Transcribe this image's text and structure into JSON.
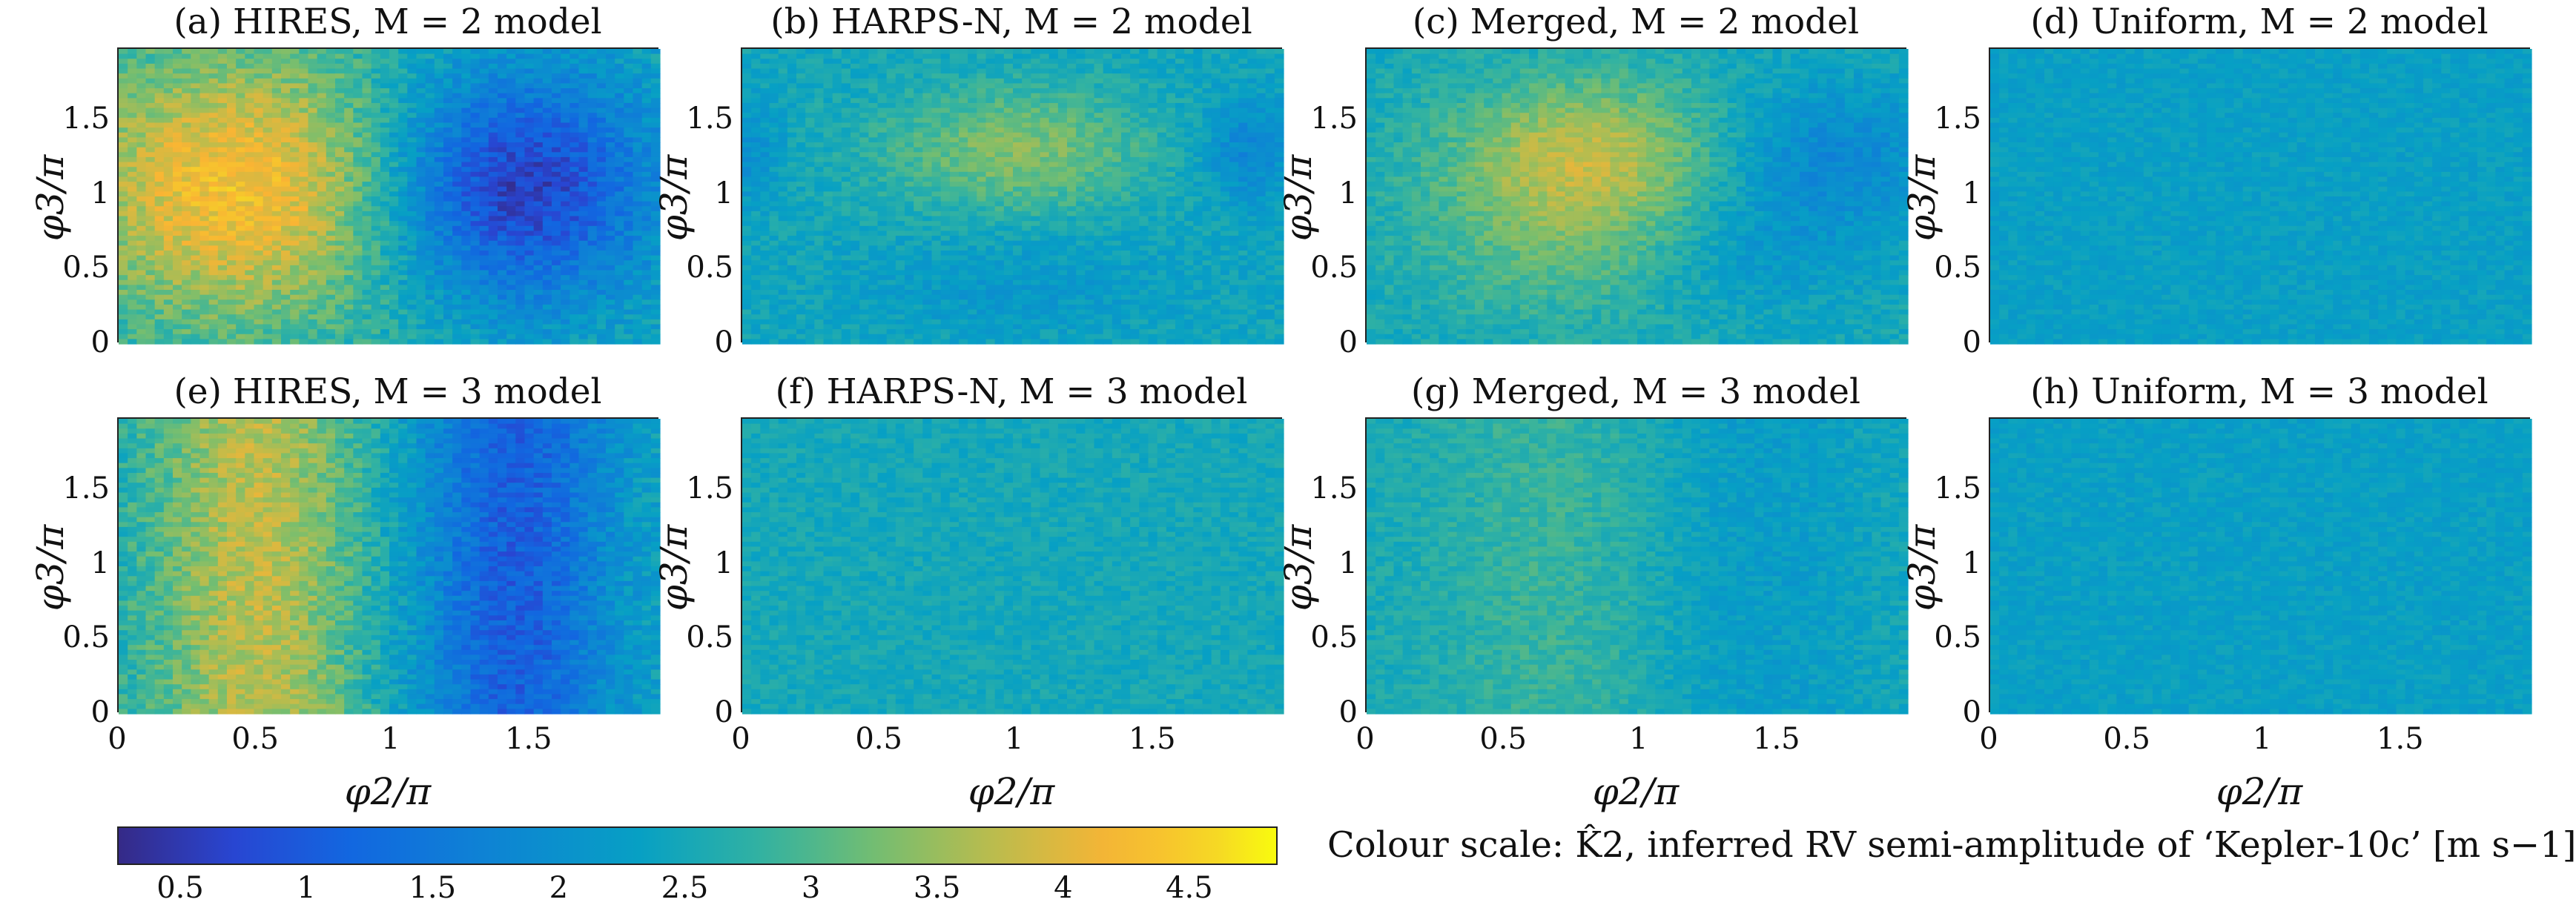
{
  "chart_data": {
    "type": "heatmap",
    "xlabel": "φ2/π",
    "ylabel": "φ3/π",
    "xlim": [
      0,
      2
    ],
    "ylim": [
      0,
      2
    ],
    "x_ticks": [
      "0",
      "0.5",
      "1",
      "1.5"
    ],
    "y_ticks": [
      "0",
      "0.5",
      "1",
      "1.5"
    ],
    "grid_resolution": [
      60,
      60
    ],
    "colormap": "parula",
    "colorbar": {
      "range": [
        0.25,
        4.85
      ],
      "ticks": [
        "0.5",
        "1",
        "1.5",
        "2",
        "2.5",
        "3",
        "3.5",
        "4",
        "4.5"
      ],
      "caption": "Colour scale: K̂2, inferred RV semi-amplitude of ‘Kepler-10c’ [m s−1]"
    },
    "panels": [
      {
        "title": "(a) HIRES, M = 2 model",
        "baseline": 2.5,
        "features": [
          {
            "x": 0.45,
            "y": 1.05,
            "dv": 1.8,
            "sx": 0.45,
            "sy": 0.65
          },
          {
            "x": 1.45,
            "y": 1.05,
            "dv": -2.0,
            "sx": 0.35,
            "sy": 0.55
          }
        ],
        "noise": 0.35
      },
      {
        "title": "(b) HARPS-N, M = 2 model",
        "baseline": 2.45,
        "features": [
          {
            "x": 1.0,
            "y": 1.3,
            "dv": 0.9,
            "sx": 0.35,
            "sy": 0.3
          },
          {
            "x": 1.0,
            "y": 0.4,
            "dv": -0.3,
            "sx": 0.4,
            "sy": 0.25
          },
          {
            "x": 0.0,
            "y": 1.3,
            "dv": -0.5,
            "sx": 0.1,
            "sy": 0.25
          },
          {
            "x": 1.85,
            "y": 1.3,
            "dv": -0.7,
            "sx": 0.12,
            "sy": 0.25
          }
        ],
        "noise": 0.25
      },
      {
        "title": "(c) Merged, M = 2 model",
        "baseline": 2.5,
        "features": [
          {
            "x": 0.8,
            "y": 1.3,
            "dv": 1.1,
            "sx": 0.35,
            "sy": 0.35
          },
          {
            "x": 0.75,
            "y": 0.7,
            "dv": 0.6,
            "sx": 0.4,
            "sy": 0.4
          },
          {
            "x": 1.7,
            "y": 1.25,
            "dv": -0.7,
            "sx": 0.3,
            "sy": 0.35
          },
          {
            "x": 1.4,
            "y": 0.6,
            "dv": -0.4,
            "sx": 0.3,
            "sy": 0.3
          }
        ],
        "noise": 0.25
      },
      {
        "title": "(d) Uniform, M = 2 model",
        "baseline": 2.3,
        "features": [],
        "noise": 0.18
      },
      {
        "title": "(e) HIRES, M = 3 model",
        "baseline": 2.45,
        "features": [
          {
            "x": 0.5,
            "y": 1.0,
            "dv": 1.3,
            "sx": 0.28,
            "sy": 3.0
          },
          {
            "x": 1.45,
            "y": 1.0,
            "dv": -1.4,
            "sx": 0.25,
            "sy": 3.0
          }
        ],
        "noise": 0.35
      },
      {
        "title": "(f) HARPS-N, M = 3 model",
        "baseline": 2.5,
        "features": [],
        "noise": 0.2
      },
      {
        "title": "(g) Merged, M = 3 model",
        "baseline": 2.5,
        "features": [
          {
            "x": 0.7,
            "y": 1.0,
            "dv": 0.35,
            "sx": 0.35,
            "sy": 3.0
          },
          {
            "x": 1.4,
            "y": 1.0,
            "dv": -0.3,
            "sx": 0.3,
            "sy": 3.0
          }
        ],
        "noise": 0.22
      },
      {
        "title": "(h) Uniform, M = 3 model",
        "baseline": 2.3,
        "features": [],
        "noise": 0.18
      }
    ]
  }
}
